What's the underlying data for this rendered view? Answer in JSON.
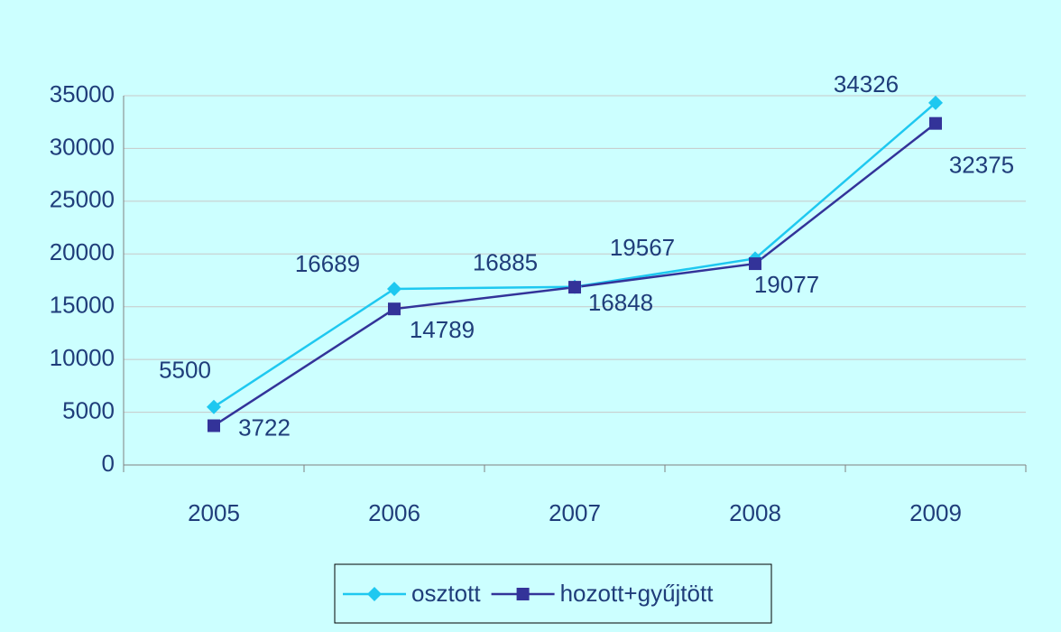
{
  "chart_data": {
    "type": "line",
    "categories": [
      "2005",
      "2006",
      "2007",
      "2008",
      "2009"
    ],
    "series": [
      {
        "name": "osztott",
        "color": "#1ec8f0",
        "marker": "diamond",
        "values": [
          5500,
          16689,
          16885,
          19567,
          34326
        ]
      },
      {
        "name": "hozott+gyűjtött",
        "color": "#333399",
        "marker": "square",
        "values": [
          3722,
          14789,
          16848,
          19077,
          32375
        ]
      }
    ],
    "ylim": [
      0,
      35000
    ],
    "yticks": [
      0,
      5000,
      10000,
      15000,
      20000,
      25000,
      30000,
      35000
    ],
    "grid": true,
    "legend": "bottom"
  }
}
